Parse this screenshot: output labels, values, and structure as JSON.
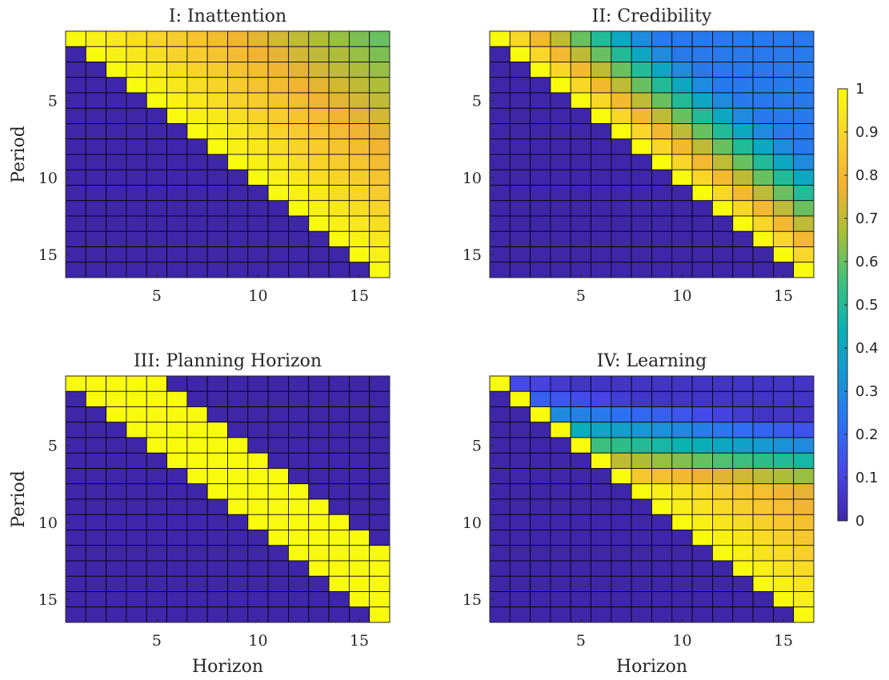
{
  "chart_data": [
    {
      "type": "heatmap",
      "title": "I: Inattention",
      "xlabel": "",
      "ylabel": "Period",
      "x": [
        1,
        2,
        3,
        4,
        5,
        6,
        7,
        8,
        9,
        10,
        11,
        12,
        13,
        14,
        15,
        16
      ],
      "y": [
        1,
        2,
        3,
        4,
        5,
        6,
        7,
        8,
        9,
        10,
        11,
        12,
        13,
        14,
        15,
        16
      ],
      "xticks": [
        5,
        10,
        15
      ],
      "yticks": [
        5,
        10,
        15
      ],
      "model": "inattention",
      "note": "values(period,horizon): 1 on diagonal, declines toward ~0.6 at far horizon; 0 below diagonal",
      "values_description": "upper triangle"
    },
    {
      "type": "heatmap",
      "title": "II: Credibility",
      "xlabel": "",
      "ylabel": "",
      "x": [
        1,
        2,
        3,
        4,
        5,
        6,
        7,
        8,
        9,
        10,
        11,
        12,
        13,
        14,
        15,
        16
      ],
      "y": [
        1,
        2,
        3,
        4,
        5,
        6,
        7,
        8,
        9,
        10,
        11,
        12,
        13,
        14,
        15,
        16
      ],
      "xticks": [
        5,
        10,
        15
      ],
      "yticks": [
        5,
        10,
        15
      ],
      "model": "credibility"
    },
    {
      "type": "heatmap",
      "title": "III: Planning Horizon",
      "xlabel": "Horizon",
      "ylabel": "Period",
      "x": [
        1,
        2,
        3,
        4,
        5,
        6,
        7,
        8,
        9,
        10,
        11,
        12,
        13,
        14,
        15,
        16
      ],
      "y": [
        1,
        2,
        3,
        4,
        5,
        6,
        7,
        8,
        9,
        10,
        11,
        12,
        13,
        14,
        15,
        16
      ],
      "xticks": [
        5,
        10,
        15
      ],
      "yticks": [
        5,
        10,
        15
      ],
      "model": "planning"
    },
    {
      "type": "heatmap",
      "title": "IV: Learning",
      "xlabel": "Horizon",
      "ylabel": "",
      "x": [
        1,
        2,
        3,
        4,
        5,
        6,
        7,
        8,
        9,
        10,
        11,
        12,
        13,
        14,
        15,
        16
      ],
      "y": [
        1,
        2,
        3,
        4,
        5,
        6,
        7,
        8,
        9,
        10,
        11,
        12,
        13,
        14,
        15,
        16
      ],
      "xticks": [
        5,
        10,
        15
      ],
      "yticks": [
        5,
        10,
        15
      ],
      "model": "learning"
    }
  ],
  "colorbar": {
    "range": [
      0,
      1
    ],
    "ticks": [
      "0",
      "0.1",
      "0.2",
      "0.3",
      "0.4",
      "0.5",
      "0.6",
      "0.7",
      "0.8",
      "0.9",
      "1"
    ],
    "colormap": "parula",
    "stops": [
      "#3e26a8",
      "#4745e8",
      "#2d70f3",
      "#1896d6",
      "#06b3b3",
      "#3fc07c",
      "#a8bf38",
      "#f2b233",
      "#f8d32b",
      "#f9fb0e"
    ]
  },
  "grid_color": "#000000",
  "background_color": "#ffffff"
}
